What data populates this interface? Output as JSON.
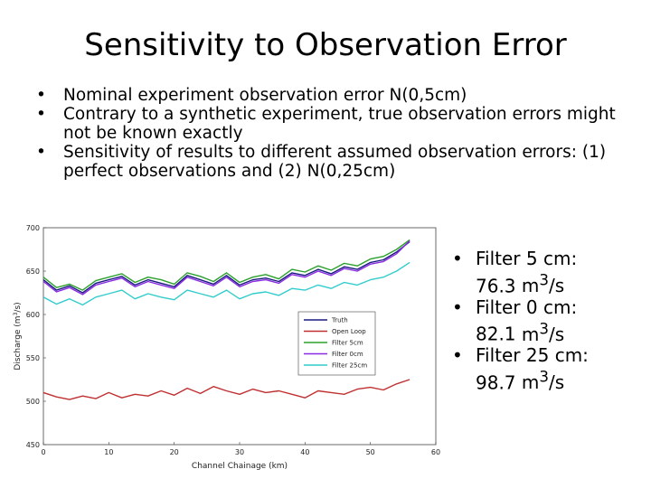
{
  "slide": {
    "title": "Sensitivity to Observation Error",
    "bullets": [
      "Nominal experiment observation error N(0,5cm)",
      "Contrary to a synthetic experiment, true observation errors might not be known exactly",
      "Sensitivity of results to different assumed observation errors: (1) perfect observations and (2) N(0,25cm)"
    ],
    "results": [
      {
        "label": "Filter 5 cm:",
        "value": "76.3",
        "unit_base": "m",
        "unit_exp": "3",
        "unit_tail": "/s"
      },
      {
        "label": "Filter 0 cm:",
        "value": "82.1",
        "unit_base": "m",
        "unit_exp": "3",
        "unit_tail": "/s"
      },
      {
        "label": "Filter 25 cm:",
        "value": "98.7",
        "unit_base": "m",
        "unit_exp": "3",
        "unit_tail": "/s"
      }
    ],
    "bullet_glyph": "•"
  },
  "chart_data": {
    "type": "line",
    "title": "",
    "xlabel": "Channel Chainage (km)",
    "ylabel": "Discharge (m^3/s)",
    "xlim": [
      0,
      60
    ],
    "ylim": [
      450,
      700
    ],
    "xticks": [
      0,
      10,
      20,
      30,
      40,
      50,
      60
    ],
    "yticks": [
      450,
      500,
      550,
      600,
      650,
      700
    ],
    "legend_position": "center-right",
    "x": [
      0,
      2,
      4,
      6,
      8,
      10,
      12,
      14,
      16,
      18,
      20,
      22,
      24,
      26,
      28,
      30,
      32,
      34,
      36,
      38,
      40,
      42,
      44,
      46,
      48,
      50,
      52,
      54,
      56
    ],
    "series": [
      {
        "name": "Truth",
        "color": "#1a1a80",
        "values": [
          640,
          628,
          633,
          625,
          636,
          640,
          644,
          634,
          640,
          636,
          632,
          645,
          640,
          635,
          645,
          634,
          640,
          642,
          638,
          648,
          645,
          652,
          647,
          655,
          652,
          660,
          663,
          672,
          684
        ]
      },
      {
        "name": "Open Loop",
        "color": "#c03030",
        "values": [
          510,
          505,
          502,
          506,
          503,
          510,
          504,
          508,
          506,
          512,
          507,
          515,
          509,
          517,
          512,
          508,
          514,
          510,
          512,
          508,
          504,
          512,
          510,
          508,
          514,
          516,
          513,
          520,
          525
        ]
      },
      {
        "name": "Filter 5cm",
        "color": "#2ca02c",
        "values": [
          643,
          631,
          635,
          628,
          639,
          643,
          647,
          637,
          643,
          640,
          635,
          648,
          644,
          638,
          648,
          637,
          643,
          646,
          641,
          652,
          649,
          656,
          651,
          659,
          656,
          664,
          667,
          675,
          686
        ]
      },
      {
        "name": "Filter 0cm",
        "color": "#8a2be2",
        "values": [
          638,
          626,
          631,
          623,
          634,
          638,
          642,
          632,
          638,
          634,
          630,
          643,
          638,
          633,
          643,
          632,
          638,
          640,
          636,
          646,
          643,
          650,
          645,
          653,
          650,
          658,
          661,
          670,
          685
        ]
      },
      {
        "name": "Filter 25cm",
        "color": "#33cccc",
        "values": [
          620,
          612,
          618,
          611,
          620,
          624,
          628,
          618,
          624,
          620,
          617,
          628,
          624,
          620,
          628,
          618,
          624,
          626,
          622,
          630,
          628,
          634,
          630,
          637,
          634,
          640,
          643,
          650,
          660
        ]
      }
    ]
  }
}
